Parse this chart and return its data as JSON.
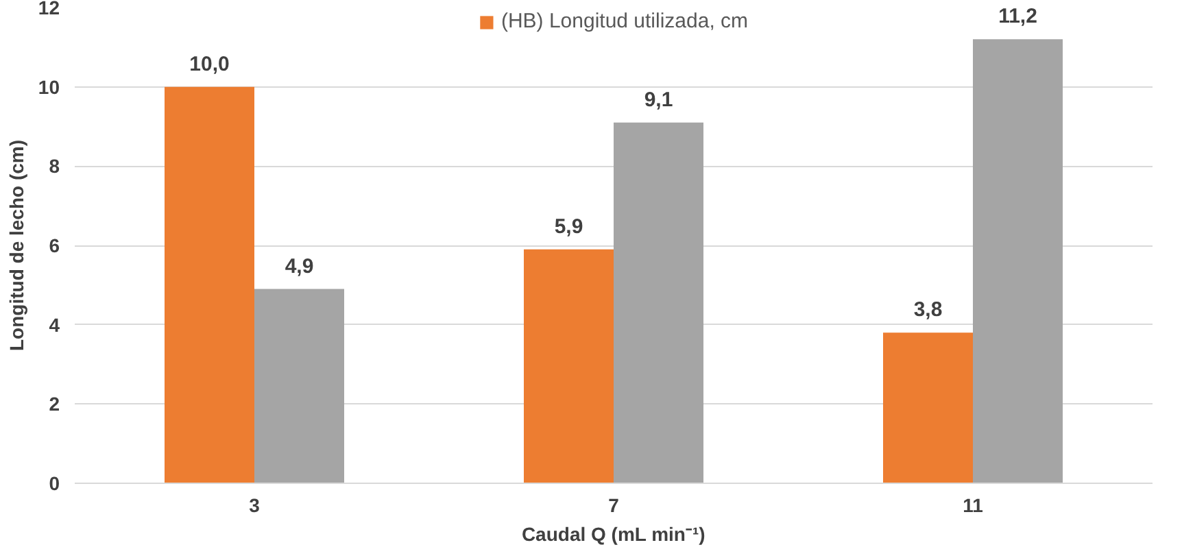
{
  "chart_data": {
    "type": "bar",
    "categories": [
      "3",
      "7",
      "11"
    ],
    "xlabel": "Caudal Q (mL min⁻¹)",
    "ylabel": "Longitud de lecho (cm)",
    "ylim": [
      0,
      12
    ],
    "yticks": [
      0,
      2,
      4,
      6,
      8,
      10,
      12
    ],
    "grid": "y",
    "legend": "top",
    "series": [
      {
        "name": "(HB) Longitud utilizada, cm",
        "color": "#ed7d31",
        "values": [
          10.0,
          5.9,
          3.8
        ],
        "value_labels": [
          "10,0",
          "5,9",
          "3,8"
        ]
      },
      {
        "color": "#a5a5a5",
        "values": [
          4.9,
          9.1,
          11.2
        ],
        "value_labels": [
          "4,9",
          "9,1",
          "11,2"
        ]
      }
    ]
  }
}
